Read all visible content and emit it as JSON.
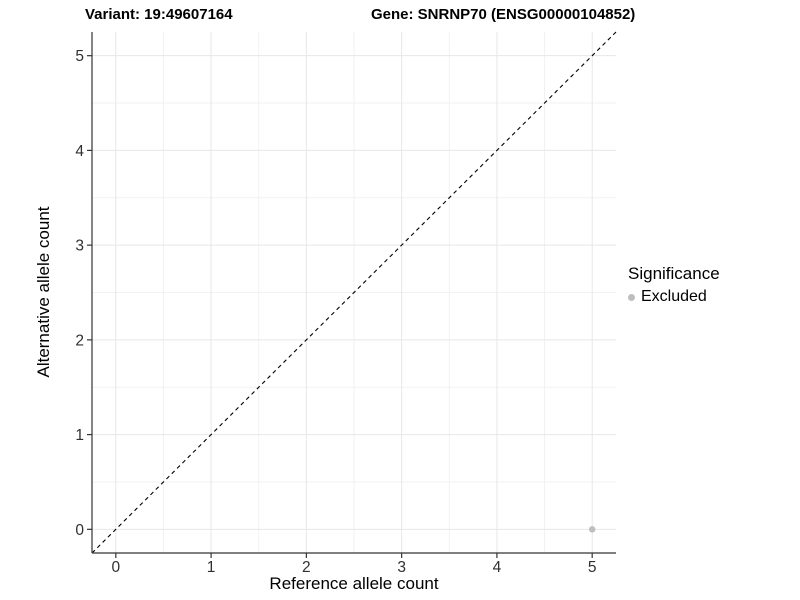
{
  "chart_data": {
    "type": "scatter",
    "titles": {
      "left": "Variant: 19:49607164",
      "right": "Gene: SNRNP70 (ENSG00000104852)"
    },
    "xlabel": "Reference allele count",
    "ylabel": "Alternative allele count",
    "xlim": [
      -0.25,
      5.25
    ],
    "ylim": [
      -0.25,
      5.25
    ],
    "x_ticks": [
      0,
      1,
      2,
      3,
      4,
      5
    ],
    "y_ticks": [
      0,
      1,
      2,
      3,
      4,
      5
    ],
    "minor_gridlines": [
      0.5,
      1.5,
      2.5,
      3.5,
      4.5
    ],
    "grid": "major and minor gridlines on white background",
    "identity_line": {
      "slope": 1,
      "intercept": 0,
      "style": "dashed",
      "color": "#000000"
    },
    "series": [
      {
        "name": "Excluded",
        "color": "#bebebe",
        "points": [
          {
            "x": 5,
            "y": 0
          }
        ]
      }
    ],
    "legend": {
      "title": "Significance",
      "position": "right",
      "entries": [
        {
          "label": "Excluded",
          "color": "#bebebe",
          "marker": "circle"
        }
      ]
    }
  },
  "style_colors": {
    "major_grid": "#e7e7e7",
    "minor_grid": "#f2f2f2",
    "axis_line": "#333333",
    "tick_mark": "#333333",
    "tick_label": "#303030",
    "point": "#bebebe"
  }
}
